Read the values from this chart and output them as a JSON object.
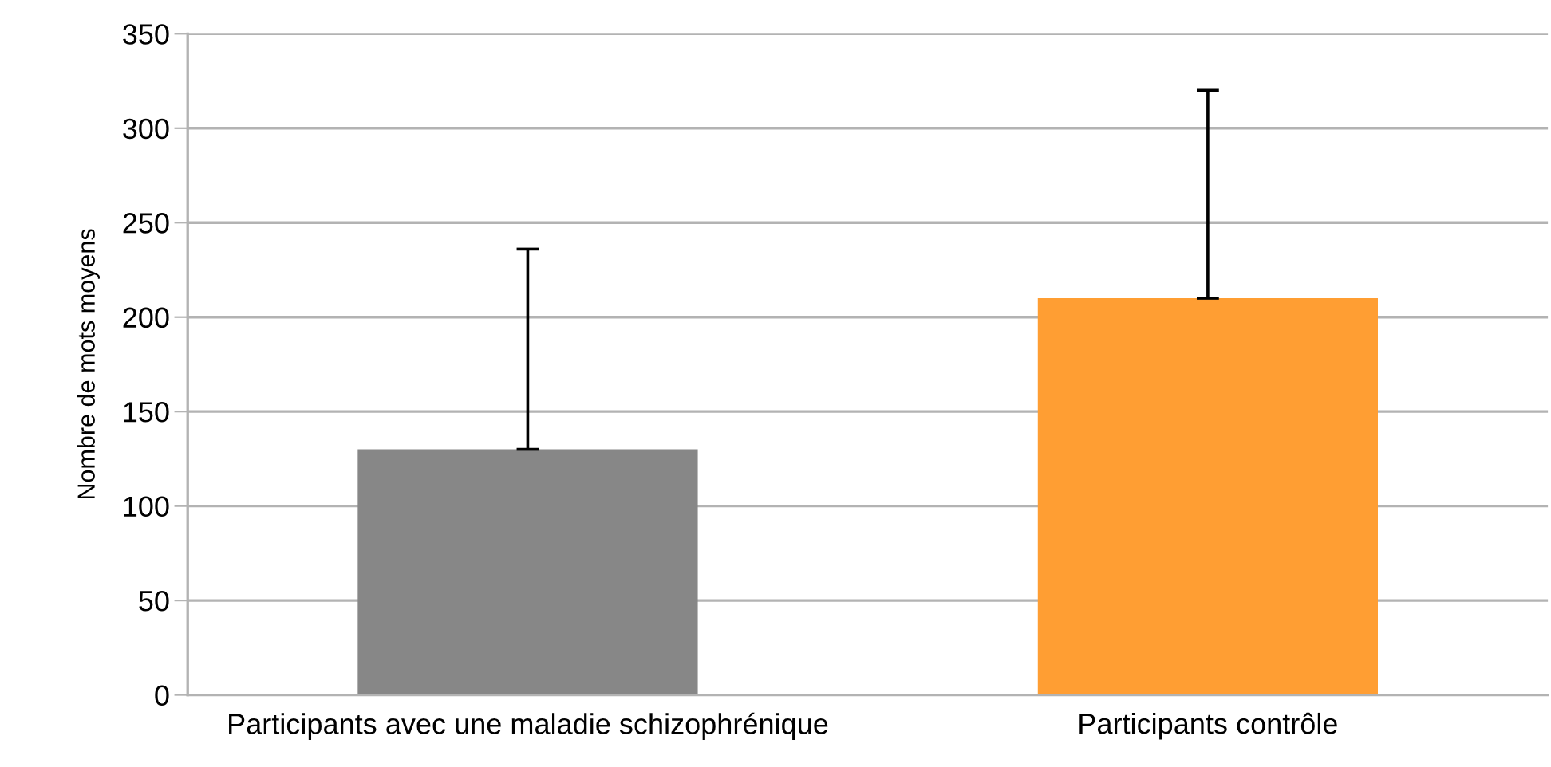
{
  "chart_data": {
    "type": "bar",
    "ylabel": "Nombre de mots moyens",
    "categories": [
      "Participants avec une maladie schizophrénique",
      "Participants contrôle"
    ],
    "values": [
      130,
      210
    ],
    "colors": [
      "#878787",
      "#ff9e33"
    ],
    "errors": [
      [
        130,
        236
      ],
      [
        210,
        320
      ]
    ],
    "ylim": [
      0,
      350
    ],
    "yticks": [
      0,
      50,
      100,
      150,
      200,
      250,
      300,
      350
    ],
    "grid": "y"
  }
}
